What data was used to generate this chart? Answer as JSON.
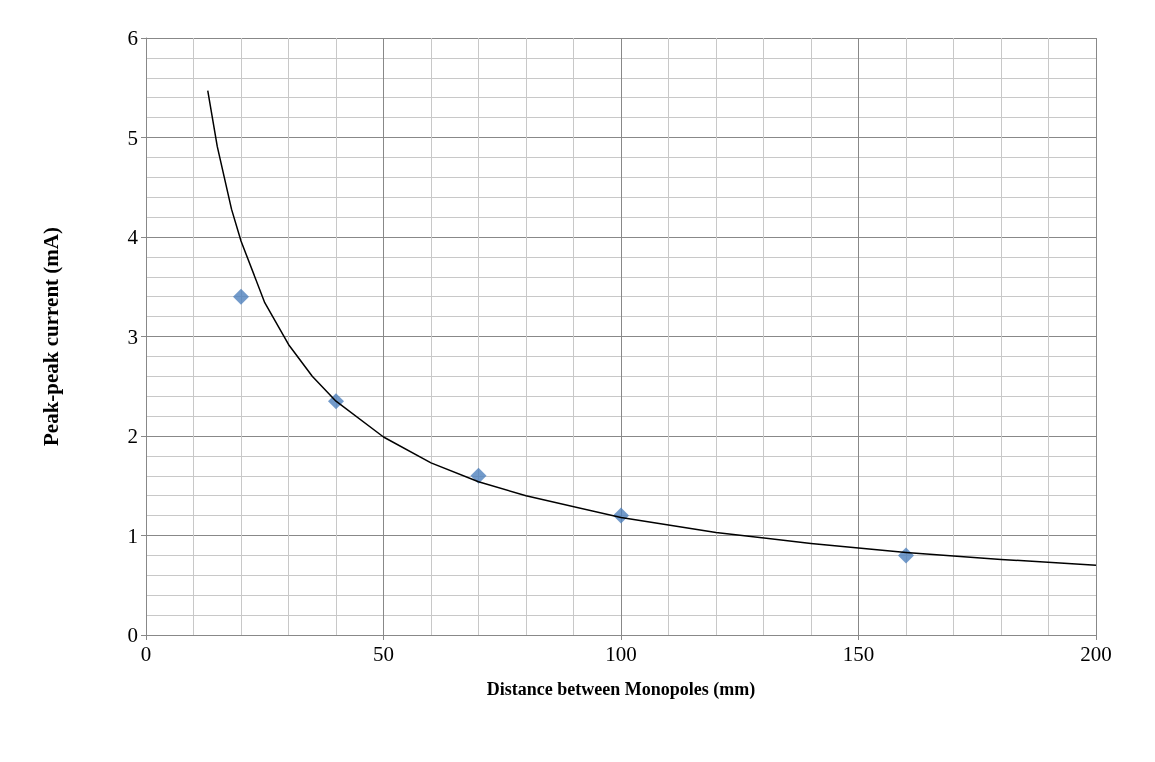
{
  "chart_data": {
    "type": "scatter",
    "xlabel": "Distance between Monopoles (mm)",
    "ylabel": "Peak-peak current (mA)",
    "xlim": [
      0,
      200
    ],
    "xticks": [
      0,
      50,
      100,
      150,
      200
    ],
    "ylim": [
      0,
      6
    ],
    "yticks": [
      0,
      1,
      2,
      3,
      4,
      5,
      6
    ],
    "grid": true,
    "marker": "diamond",
    "series": [
      {
        "color": "#4f81bd",
        "x": [
          20,
          40,
          70,
          100,
          160
        ],
        "values": [
          3.4,
          2.35,
          1.6,
          1.2,
          0.8
        ]
      },
      {
        "type": "line",
        "color": "#000000",
        "marker": "none",
        "x": [
          13,
          15,
          18,
          20,
          25,
          30,
          35,
          40,
          50,
          60,
          70,
          80,
          100,
          120,
          140,
          160,
          180,
          200
        ],
        "values": [
          5.47,
          4.91,
          4.28,
          3.96,
          3.34,
          2.92,
          2.6,
          2.35,
          1.99,
          1.73,
          1.54,
          1.4,
          1.18,
          1.03,
          0.92,
          0.83,
          0.76,
          0.7
        ]
      }
    ]
  }
}
